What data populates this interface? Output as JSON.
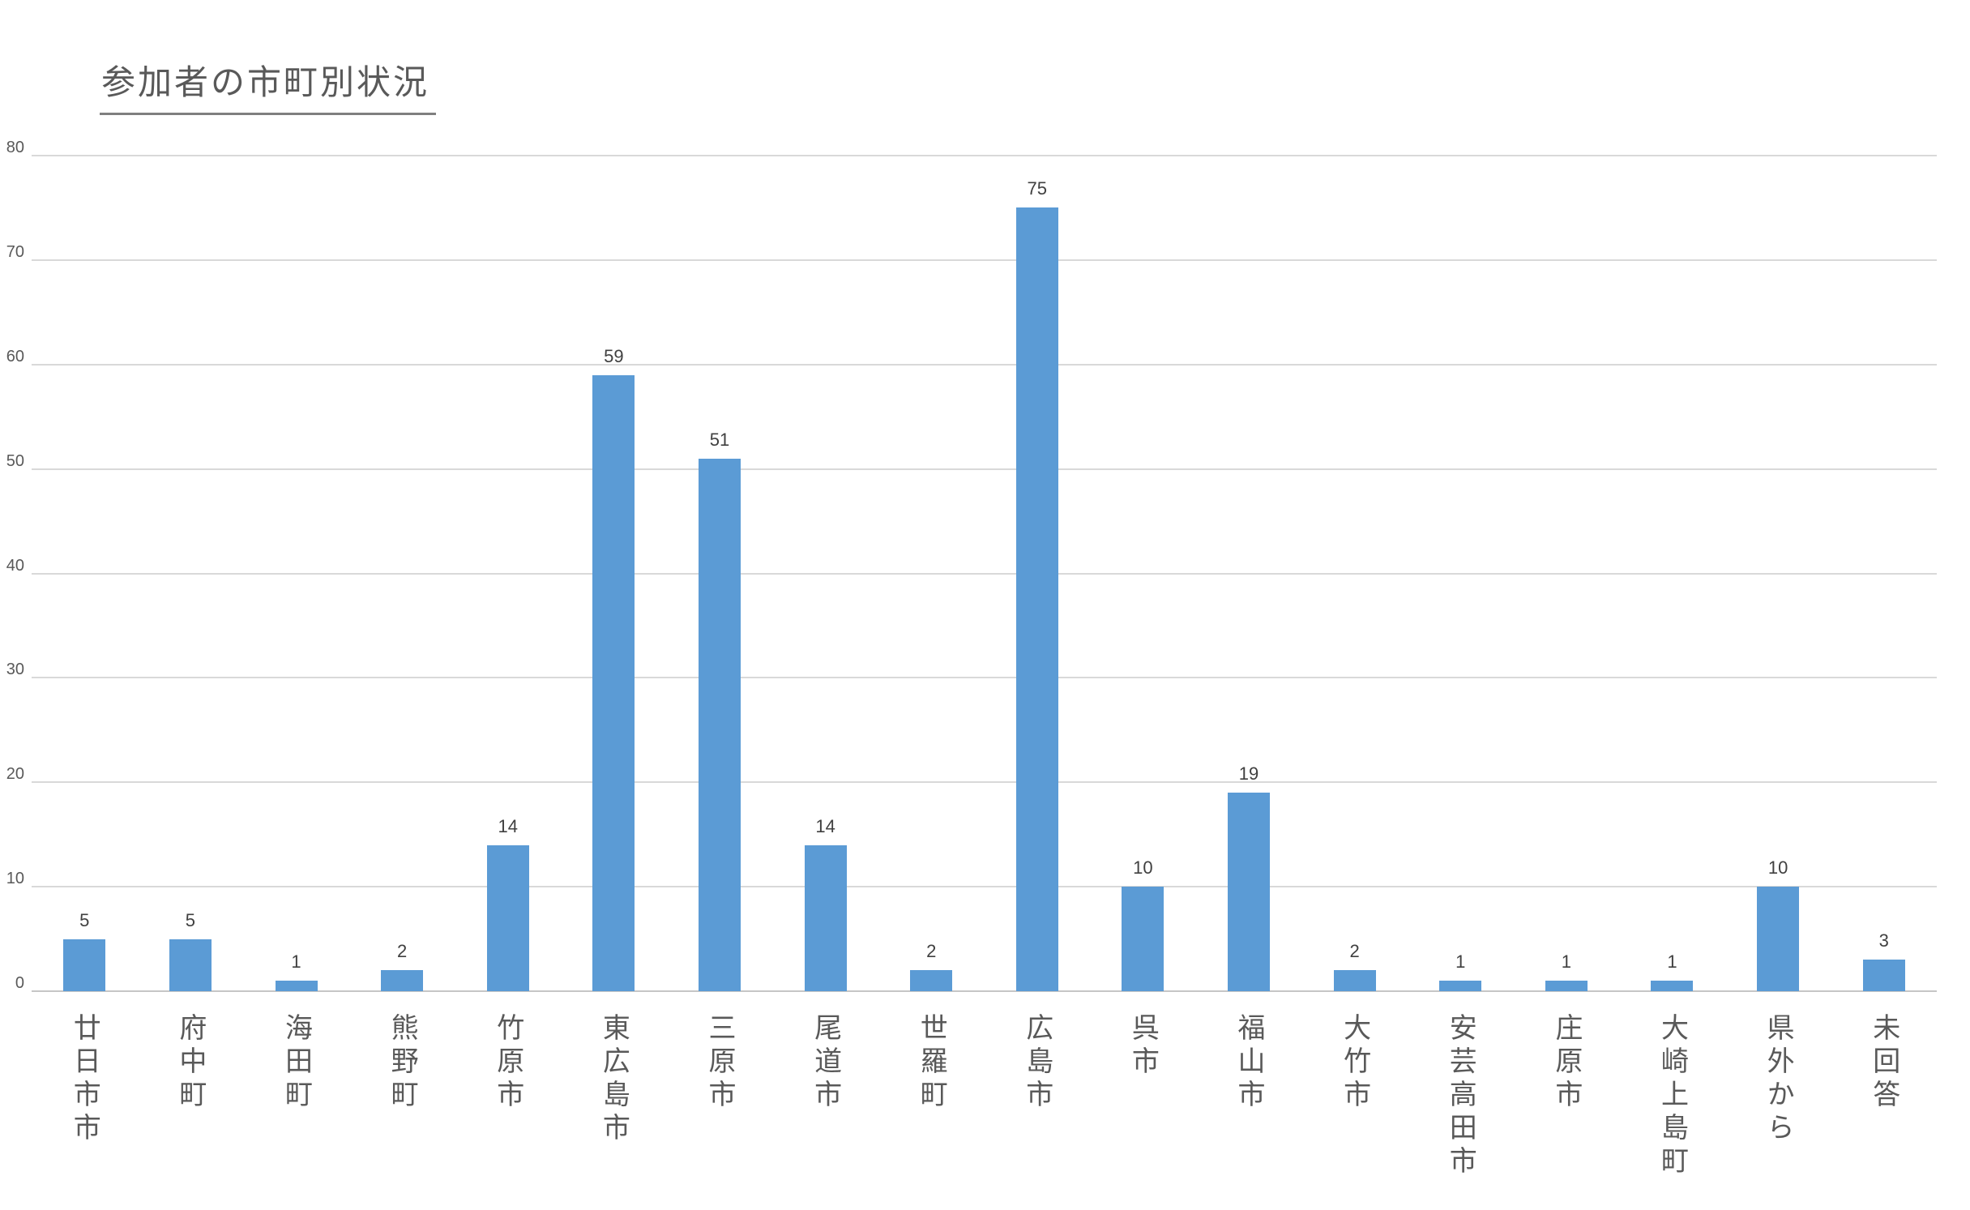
{
  "title": "参加者の市町別状況",
  "chart_data": {
    "type": "bar",
    "title": "参加者の市町別状況",
    "categories": [
      "廿日市市",
      "府中町",
      "海田町",
      "熊野町",
      "竹原市",
      "東広島市",
      "三原市",
      "尾道市",
      "世羅町",
      "広島市",
      "呉市",
      "福山市",
      "大竹市",
      "安芸高田市",
      "庄原市",
      "大崎上島町",
      "県外から",
      "未回答"
    ],
    "values": [
      5,
      5,
      1,
      2,
      14,
      59,
      51,
      14,
      2,
      75,
      10,
      19,
      2,
      1,
      1,
      1,
      10,
      3
    ],
    "value_labels_shown": true,
    "xlabel": "",
    "ylabel": "",
    "ylim": [
      0,
      80
    ],
    "yticks": [
      0,
      10,
      20,
      30,
      40,
      50,
      60,
      70,
      80
    ],
    "grid": "horizontal",
    "legend": "none",
    "x_label_orientation": "vertical",
    "colors": {
      "bar": "#5b9bd5",
      "gridline": "#d9d9d9",
      "axis_text": "#595959",
      "value_text": "#404040",
      "title_text": "#595959",
      "background": "#ffffff"
    }
  }
}
